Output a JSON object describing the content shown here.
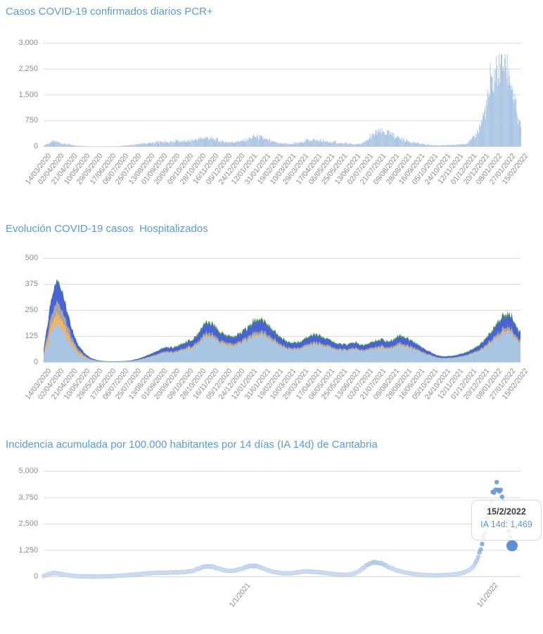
{
  "page": {
    "background": "#ffffff",
    "grid_color": "#d9d9d9",
    "axis_text_color": "#8c8c8c",
    "title_color": "#5b9bd5"
  },
  "tooltip": {
    "date": "15/2/2022",
    "value_label": "IA 14d: 1,469"
  },
  "chart_data": [
    {
      "id": "pcr",
      "type": "bar",
      "title": "Casos COVID-19 confirmados diarios PCR+",
      "ylabel": "",
      "xlabel": "",
      "ylim": [
        0,
        3000
      ],
      "yticks": [
        "3,000",
        "2,250",
        "1,500",
        "750",
        "0"
      ],
      "bar_color": "#a9c5e4",
      "x_start_date": "14/03/2020",
      "x_end_date": "15/02/2022",
      "total_days": 703,
      "xtick_step_days": 19,
      "xticks": [
        "14/03/2020",
        "02/04/2020",
        "21/04/2020",
        "10/05/2020",
        "29/05/2020",
        "17/06/2020",
        "06/07/2020",
        "25/07/2020",
        "13/08/2020",
        "01/09/2020",
        "20/09/2020",
        "09/10/2020",
        "28/10/2020",
        "16/11/2020",
        "05/12/2020",
        "24/12/2020",
        "12/01/2021",
        "31/01/2021",
        "19/02/2021",
        "10/03/2021",
        "29/03/2021",
        "17/04/2021",
        "06/05/2021",
        "25/05/2021",
        "13/06/2021",
        "02/07/2021",
        "21/07/2021",
        "09/08/2021",
        "28/08/2021",
        "16/09/2021",
        "05/10/2021",
        "24/10/2021",
        "12/11/2021",
        "01/12/2021",
        "20/12/2021",
        "08/01/2022",
        "27/01/2022",
        "15/02/2022"
      ],
      "sample_step_days": 7,
      "values": [
        30,
        90,
        150,
        130,
        85,
        60,
        40,
        25,
        15,
        10,
        8,
        5,
        5,
        5,
        8,
        10,
        15,
        25,
        40,
        50,
        70,
        80,
        90,
        110,
        120,
        130,
        115,
        145,
        170,
        140,
        150,
        170,
        200,
        230,
        260,
        235,
        200,
        160,
        130,
        120,
        130,
        145,
        165,
        210,
        270,
        290,
        245,
        185,
        140,
        110,
        90,
        80,
        75,
        85,
        110,
        170,
        200,
        190,
        160,
        145,
        130,
        120,
        100,
        90,
        80,
        70,
        65,
        85,
        160,
        290,
        390,
        420,
        400,
        350,
        290,
        235,
        185,
        145,
        115,
        90,
        65,
        50,
        40,
        35,
        32,
        38,
        45,
        55,
        70,
        95,
        180,
        350,
        650,
        1100,
        1600,
        2100,
        2400,
        2550,
        2150,
        1400,
        650
      ]
    },
    {
      "id": "hosp",
      "type": "area",
      "title": "Evolución COVID-19 casos  Hospitalizados",
      "ylabel": "",
      "xlabel": "",
      "ylim": [
        0,
        500
      ],
      "yticks": [
        "500",
        "375",
        "250",
        "125",
        "0"
      ],
      "x_start_date": "14/03/2020",
      "x_end_date": "15/02/2022",
      "total_days": 703,
      "xtick_step_days": 19,
      "xticks": [
        "14/03/2020",
        "02/04/2020",
        "21/04/2020",
        "10/05/2020",
        "29/05/2020",
        "17/06/2020",
        "06/07/2020",
        "25/07/2020",
        "13/08/2020",
        "01/09/2020",
        "20/09/2020",
        "09/10/2020",
        "28/10/2020",
        "16/11/2020",
        "05/12/2020",
        "24/12/2020",
        "12/01/2021",
        "31/01/2021",
        "19/02/2021",
        "10/03/2021",
        "29/03/2021",
        "17/04/2021",
        "06/05/2021",
        "25/05/2021",
        "13/06/2021",
        "02/07/2021",
        "21/07/2021",
        "09/08/2021",
        "28/08/2021",
        "16/09/2021",
        "05/10/2021",
        "24/10/2021",
        "12/11/2021",
        "01/12/2021",
        "20/12/2021",
        "08/01/2022",
        "27/01/2022",
        "15/02/2022"
      ],
      "sample_step_days": 10,
      "totals": [
        60,
        280,
        400,
        310,
        180,
        90,
        45,
        20,
        10,
        6,
        5,
        5,
        6,
        10,
        18,
        30,
        45,
        60,
        75,
        70,
        85,
        100,
        110,
        150,
        200,
        185,
        150,
        130,
        125,
        140,
        165,
        205,
        210,
        185,
        150,
        120,
        100,
        95,
        105,
        125,
        135,
        125,
        110,
        95,
        85,
        90,
        95,
        85,
        90,
        105,
        110,
        100,
        125,
        130,
        110,
        90,
        70,
        50,
        35,
        28,
        30,
        38,
        45,
        60,
        80,
        110,
        150,
        195,
        240,
        225,
        150
      ],
      "series": [
        {
          "name": "light-blue",
          "color": "#a9c5e4",
          "share_wave1": 0.47,
          "share_later": 0.63
        },
        {
          "name": "orange",
          "color": "#f2b25e",
          "share_wave1": 0.12,
          "share_later": 0.02
        },
        {
          "name": "gray",
          "color": "#a5a5a5",
          "share_wave1": 0.14,
          "share_later": 0.07
        },
        {
          "name": "royal-blue",
          "color": "#4a63d3",
          "share_wave1": 0.25,
          "share_later": 0.23
        },
        {
          "name": "green",
          "color": "#4da04b",
          "share_wave1": 0.02,
          "share_later": 0.05
        }
      ],
      "legend": "none"
    },
    {
      "id": "ia14d",
      "type": "scatter",
      "title": "Incidencia acumulada por 100.000 habitantes por 14 días (IA 14d) de Cantabria",
      "ylabel": "",
      "xlabel": "",
      "ylim": [
        0,
        5000
      ],
      "yticks": [
        "5,000",
        "3,750",
        "2,500",
        "1,250",
        "0"
      ],
      "x_start_date": "14/03/2020",
      "x_end_date": "15/02/2022",
      "total_days": 703,
      "xticks": [
        "1/1/2021",
        "1/1/2022"
      ],
      "xtick_days": [
        293,
        658
      ],
      "dot_color_faint": "#d6e4f3",
      "dot_color_strong": "#6e9bd4",
      "sample_step_days": 7,
      "values": [
        40,
        120,
        170,
        160,
        120,
        80,
        50,
        30,
        20,
        15,
        12,
        10,
        12,
        15,
        20,
        30,
        45,
        60,
        75,
        90,
        110,
        130,
        150,
        170,
        185,
        190,
        180,
        195,
        210,
        200,
        215,
        240,
        280,
        360,
        450,
        490,
        470,
        420,
        350,
        300,
        280,
        300,
        340,
        420,
        500,
        520,
        470,
        390,
        310,
        250,
        200,
        170,
        150,
        160,
        190,
        230,
        260,
        250,
        230,
        210,
        190,
        160,
        130,
        110,
        95,
        90,
        110,
        180,
        320,
        500,
        620,
        680,
        650,
        560,
        460,
        370,
        290,
        230,
        180,
        140,
        110,
        90,
        75,
        65,
        60,
        65,
        75,
        90,
        110,
        140,
        190,
        280,
        450,
        800,
        1500,
        2600,
        3700,
        4300,
        4150,
        3100,
        1800
      ],
      "selected_point": {
        "date": "15/2/2022",
        "day": 703,
        "value": 1469,
        "label": "IA 14d: 1,469",
        "color": "#5e91d2"
      }
    }
  ]
}
